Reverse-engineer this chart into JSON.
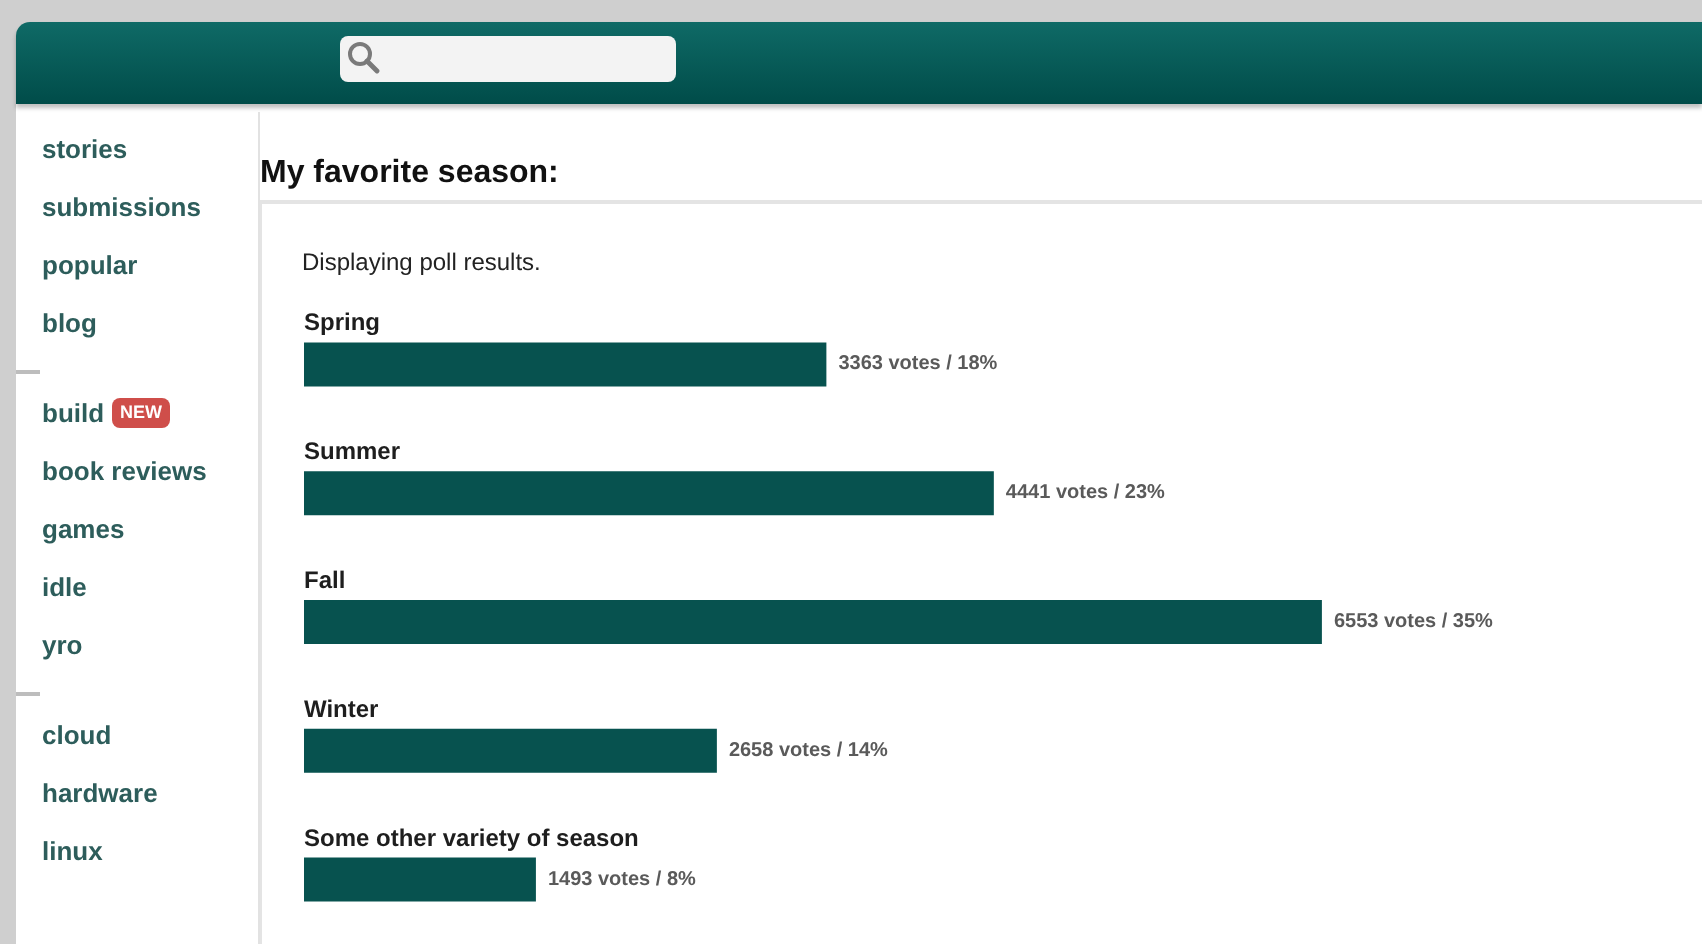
{
  "chart_data": {
    "type": "bar",
    "orientation": "horizontal",
    "title": "My favorite season:",
    "subtitle": "Displaying poll results.",
    "categories": [
      "Spring",
      "Summer",
      "Fall",
      "Winter",
      "Some other variety of season"
    ],
    "values": [
      3363,
      4441,
      6553,
      2658,
      1493
    ],
    "color": "#07524f",
    "value_labels": [
      "3363 votes / 18%",
      "4441 votes / 23%",
      "6553 votes / 35%",
      "2658 votes / 14%",
      "1493 votes / 8%"
    ],
    "xlim": [
      0,
      9000
    ],
    "grid": false,
    "tick_labels": "y",
    "annotations": [
      "stories",
      "submissions",
      "popular",
      "blog",
      "build",
      "NEW",
      "book reviews",
      "games",
      "idle",
      "yro",
      "cloud",
      "hardware",
      "linux"
    ]
  }
}
